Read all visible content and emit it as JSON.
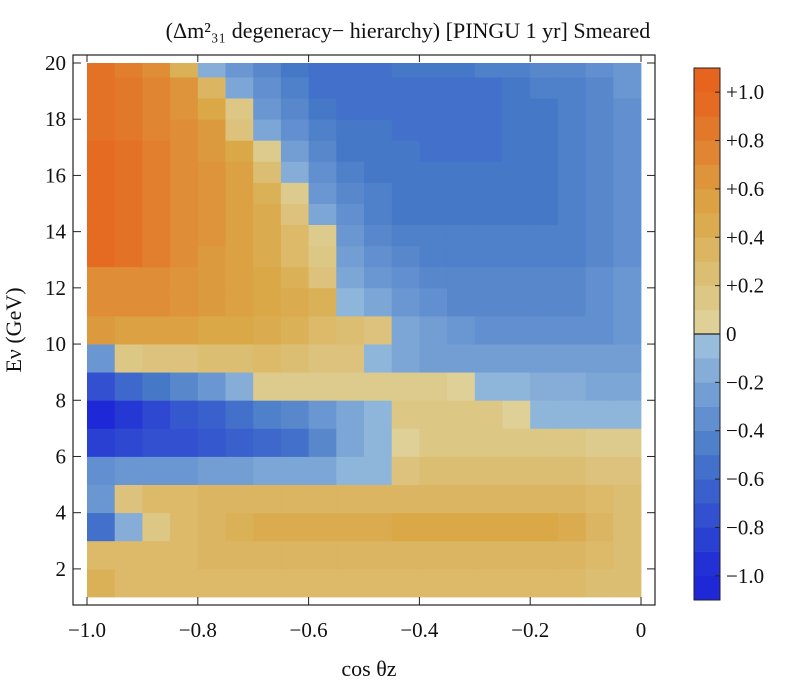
{
  "chart_data": {
    "type": "heatmap",
    "title": "(Δm²₃₁ degeneracy− hierarchy) [PINGU 1 yr] Smeared",
    "xlabel": "cos θz",
    "ylabel": "Eν (GeV)",
    "xlim": [
      -1.0,
      0.0
    ],
    "ylim": [
      1.0,
      20.0
    ],
    "x_ticks": [
      "−1.0",
      "−0.8",
      "−0.6",
      "−0.4",
      "−0.2",
      "0"
    ],
    "x_tick_values": [
      -1.0,
      -0.8,
      -0.6,
      -0.4,
      -0.2,
      0.0
    ],
    "y_ticks": [
      "2",
      "4",
      "6",
      "8",
      "10",
      "12",
      "14",
      "16",
      "18",
      "20"
    ],
    "y_tick_values": [
      2,
      4,
      6,
      8,
      10,
      12,
      14,
      16,
      18,
      20
    ],
    "x_bins": 20,
    "y_bin_edges": [
      1,
      2,
      3,
      4,
      5,
      6,
      7,
      8,
      9,
      10,
      11,
      12,
      12.75,
      13.5,
      14.25,
      15,
      15.75,
      16.5,
      17.25,
      18,
      18.75,
      19.5,
      20.25
    ],
    "colorbar": {
      "range": [
        -1.1,
        1.1
      ],
      "ticks": [
        "+1.0",
        "+0.8",
        "+0.6",
        "+0.4",
        "+0.2",
        "0",
        "−0.2",
        "−0.4",
        "−0.6",
        "−0.8",
        "−1.0"
      ],
      "tick_values": [
        1.0,
        0.8,
        0.6,
        0.4,
        0.2,
        0.0,
        -0.2,
        -0.4,
        -0.6,
        -0.8,
        -1.0
      ]
    },
    "values": [
      [
        0.4,
        0.3,
        0.3,
        0.3,
        0.3,
        0.3,
        0.3,
        0.3,
        0.3,
        0.3,
        0.3,
        0.3,
        0.3,
        0.3,
        0.3,
        0.3,
        0.3,
        0.3,
        0.25,
        0.25
      ],
      [
        0.3,
        0.3,
        0.3,
        0.3,
        0.35,
        0.35,
        0.35,
        0.35,
        0.35,
        0.35,
        0.35,
        0.35,
        0.35,
        0.35,
        0.35,
        0.35,
        0.35,
        0.35,
        0.3,
        0.25
      ],
      [
        -0.55,
        -0.15,
        0.15,
        0.3,
        0.35,
        0.4,
        0.45,
        0.45,
        0.45,
        0.45,
        0.45,
        0.5,
        0.5,
        0.5,
        0.5,
        0.5,
        0.5,
        0.45,
        0.35,
        0.25
      ],
      [
        -0.3,
        0.2,
        0.3,
        0.3,
        0.35,
        0.35,
        0.35,
        0.35,
        0.35,
        0.35,
        0.35,
        0.35,
        0.35,
        0.35,
        0.35,
        0.35,
        0.35,
        0.35,
        0.3,
        0.25
      ],
      [
        -0.35,
        -0.3,
        -0.3,
        -0.3,
        -0.25,
        -0.25,
        -0.2,
        -0.2,
        -0.2,
        -0.1,
        -0.1,
        0.2,
        0.25,
        0.25,
        0.25,
        0.25,
        0.25,
        0.25,
        0.2,
        0.2
      ],
      [
        -0.85,
        -0.8,
        -0.75,
        -0.75,
        -0.7,
        -0.65,
        -0.6,
        -0.55,
        -0.4,
        -0.2,
        -0.1,
        0.05,
        0.15,
        0.15,
        0.15,
        0.15,
        0.15,
        0.15,
        0.1,
        0.1
      ],
      [
        -1.0,
        -0.9,
        -0.8,
        -0.7,
        -0.65,
        -0.55,
        -0.45,
        -0.4,
        -0.3,
        -0.2,
        -0.1,
        0.15,
        0.15,
        0.15,
        0.15,
        0.05,
        -0.1,
        -0.1,
        -0.1,
        -0.1
      ],
      [
        -0.75,
        -0.6,
        -0.5,
        -0.4,
        -0.3,
        -0.15,
        0.1,
        0.1,
        0.1,
        0.1,
        0.1,
        0.1,
        0.1,
        0.05,
        -0.1,
        -0.1,
        -0.15,
        -0.15,
        -0.2,
        -0.2
      ],
      [
        -0.3,
        0.15,
        0.2,
        0.2,
        0.25,
        0.25,
        0.3,
        0.25,
        0.2,
        0.2,
        -0.1,
        -0.2,
        -0.25,
        -0.25,
        -0.25,
        -0.25,
        -0.25,
        -0.25,
        -0.25,
        -0.25
      ],
      [
        0.6,
        0.55,
        0.55,
        0.55,
        0.5,
        0.5,
        0.45,
        0.4,
        0.3,
        0.25,
        0.2,
        -0.2,
        -0.25,
        -0.3,
        -0.35,
        -0.35,
        -0.35,
        -0.35,
        -0.35,
        -0.3
      ],
      [
        0.7,
        0.7,
        0.7,
        0.65,
        0.6,
        0.55,
        0.5,
        0.45,
        0.4,
        -0.1,
        -0.2,
        -0.3,
        -0.35,
        -0.4,
        -0.4,
        -0.4,
        -0.4,
        -0.4,
        -0.35,
        -0.3
      ],
      [
        0.7,
        0.7,
        0.7,
        0.65,
        0.6,
        0.55,
        0.5,
        0.4,
        0.2,
        -0.2,
        -0.3,
        -0.35,
        -0.4,
        -0.4,
        -0.4,
        -0.4,
        -0.4,
        -0.4,
        -0.35,
        -0.3
      ],
      [
        0.95,
        0.9,
        0.8,
        0.7,
        0.6,
        0.55,
        0.45,
        0.3,
        0.15,
        -0.25,
        -0.35,
        -0.4,
        -0.45,
        -0.45,
        -0.45,
        -0.45,
        -0.45,
        -0.45,
        -0.4,
        -0.35
      ],
      [
        0.95,
        0.9,
        0.8,
        0.7,
        0.65,
        0.55,
        0.45,
        0.3,
        0.1,
        -0.3,
        -0.4,
        -0.45,
        -0.45,
        -0.45,
        -0.45,
        -0.45,
        -0.45,
        -0.45,
        -0.4,
        -0.35
      ],
      [
        0.95,
        0.9,
        0.8,
        0.7,
        0.65,
        0.55,
        0.45,
        0.2,
        -0.2,
        -0.35,
        -0.45,
        -0.5,
        -0.5,
        -0.5,
        -0.5,
        -0.5,
        -0.5,
        -0.45,
        -0.4,
        -0.35
      ],
      [
        0.95,
        0.9,
        0.8,
        0.7,
        0.65,
        0.55,
        0.4,
        0.1,
        -0.3,
        -0.4,
        -0.45,
        -0.5,
        -0.5,
        -0.5,
        -0.5,
        -0.5,
        -0.5,
        -0.45,
        -0.4,
        -0.35
      ],
      [
        0.95,
        0.9,
        0.8,
        0.7,
        0.65,
        0.55,
        0.25,
        -0.15,
        -0.35,
        -0.45,
        -0.5,
        -0.5,
        -0.5,
        -0.5,
        -0.5,
        -0.5,
        -0.5,
        -0.45,
        -0.4,
        -0.35
      ],
      [
        0.95,
        0.9,
        0.8,
        0.7,
        0.6,
        0.5,
        0.1,
        -0.25,
        -0.4,
        -0.5,
        -0.5,
        -0.5,
        -0.55,
        -0.55,
        -0.55,
        -0.5,
        -0.5,
        -0.45,
        -0.4,
        -0.35
      ],
      [
        0.9,
        0.85,
        0.75,
        0.7,
        0.6,
        0.2,
        -0.2,
        -0.35,
        -0.45,
        -0.5,
        -0.5,
        -0.55,
        -0.55,
        -0.55,
        -0.55,
        -0.5,
        -0.5,
        -0.45,
        -0.4,
        -0.35
      ],
      [
        0.9,
        0.85,
        0.75,
        0.65,
        0.5,
        0.15,
        -0.3,
        -0.4,
        -0.5,
        -0.55,
        -0.55,
        -0.55,
        -0.55,
        -0.55,
        -0.55,
        -0.5,
        -0.5,
        -0.45,
        -0.4,
        -0.35
      ],
      [
        0.9,
        0.85,
        0.75,
        0.65,
        0.35,
        -0.2,
        -0.35,
        -0.45,
        -0.55,
        -0.55,
        -0.55,
        -0.55,
        -0.55,
        -0.55,
        -0.55,
        -0.5,
        -0.45,
        -0.45,
        -0.4,
        -0.3
      ],
      [
        0.9,
        0.8,
        0.7,
        0.4,
        -0.15,
        -0.3,
        -0.4,
        -0.5,
        -0.55,
        -0.55,
        -0.55,
        -0.5,
        -0.5,
        -0.5,
        -0.45,
        -0.45,
        -0.4,
        -0.4,
        -0.35,
        -0.3
      ]
    ]
  }
}
